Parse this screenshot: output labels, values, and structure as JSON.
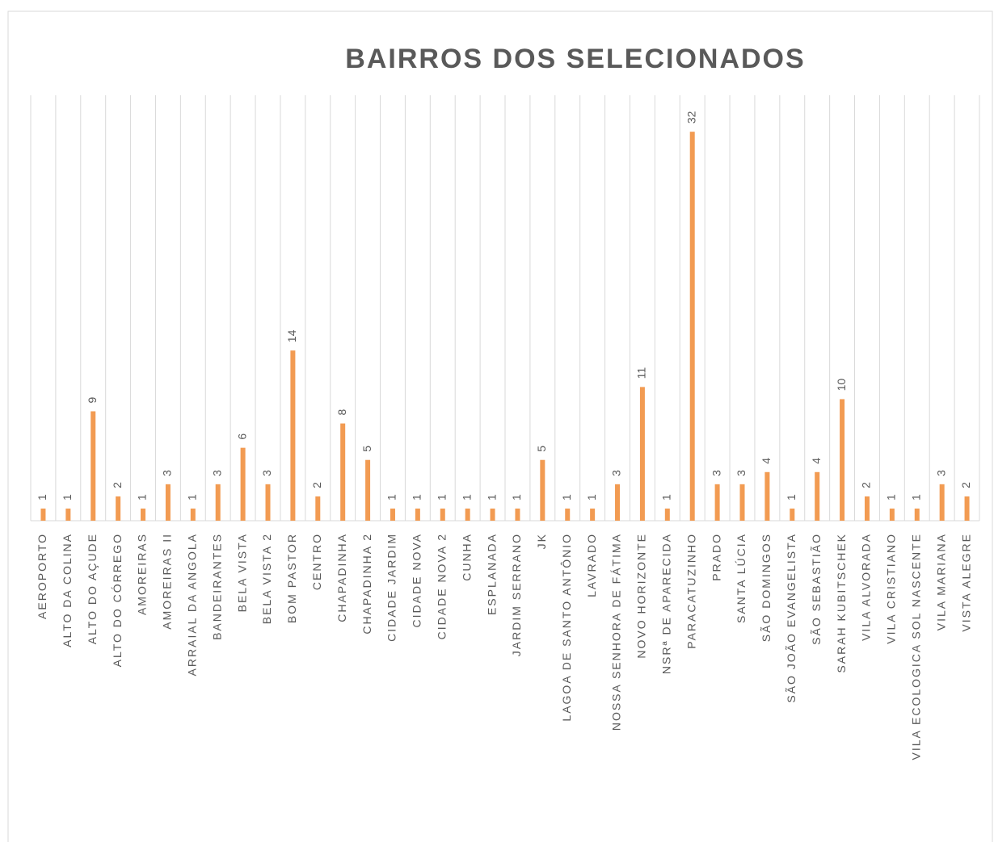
{
  "chart_data": {
    "type": "bar",
    "title": "BAIRROS DOS SELECIONADOS",
    "categories": [
      "AEROPORTO",
      "ALTO DA COLINA",
      "ALTO DO AÇUDE",
      "ALTO DO CÓRREGO",
      "AMOREIRAS",
      "AMOREIRAS II",
      "ARRAIAL DA ANGOLA",
      "BANDEIRANTES",
      "BELA VISTA",
      "BELA VISTA 2",
      "BOM PASTOR",
      "CENTRO",
      "CHAPADINHA",
      "CHAPADINHA 2",
      "CIDADE JARDIM",
      "CIDADE NOVA",
      "CIDADE NOVA 2",
      "CUNHA",
      "ESPLANADA",
      "JARDIM SERRANO",
      "JK",
      "LAGOA DE SANTO ANTÔNIO",
      "LAVRADO",
      "NOSSA SENHORA DE FÁTIMA",
      "NOVO HORIZONTE",
      "NSRª DE APARECIDA",
      "PARACATUZINHO",
      "PRADO",
      "SANTA LÚCIA",
      "SÃO DOMINGOS",
      "SÃO JOÃO EVANGELISTA",
      "SÃO SEBASTIÃO",
      "SARAH KUBITSCHEK",
      "VILA ALVORADA",
      "VILA CRISTIANO",
      "VILA ECOLOGICA SOL NASCENTE",
      "VILA MARIANA",
      "VISTA ALEGRE"
    ],
    "values": [
      1,
      1,
      9,
      2,
      1,
      3,
      1,
      3,
      6,
      3,
      14,
      2,
      8,
      5,
      1,
      1,
      1,
      1,
      1,
      1,
      5,
      1,
      1,
      3,
      11,
      1,
      32,
      3,
      3,
      4,
      1,
      4,
      10,
      2,
      1,
      1,
      3,
      2
    ],
    "color": "#f29b52",
    "ylim": [
      0,
      35
    ]
  }
}
